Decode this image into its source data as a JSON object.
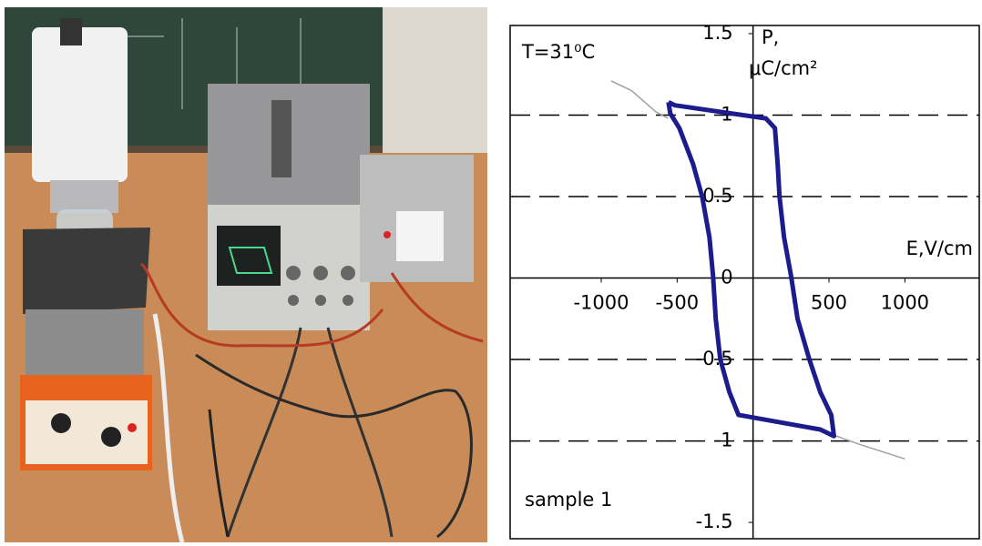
{
  "chart_data": {
    "type": "line",
    "title": "T=31⁰C",
    "ylabel_lines": [
      "P,",
      "μC/cm²"
    ],
    "xlabel": "E,V/cm",
    "annotation": "sample 1",
    "xlim": [
      -1600,
      1490
    ],
    "ylim": [
      -1.6,
      1.55
    ],
    "xticks": [
      -1000,
      -500,
      500,
      1000
    ],
    "yticks": [
      1.5,
      1,
      0.5,
      0,
      -0.5,
      -1,
      -1.5
    ],
    "ygrid": [
      1,
      0.5,
      -0.5,
      -1
    ],
    "grid": "dashed",
    "series": [
      {
        "color": "#a0a0a0",
        "x": [
          -934,
          -800,
          -640,
          -560,
          null,
          520,
          700,
          1000
        ],
        "values": [
          1.21,
          1.15,
          1.02,
          0.98,
          null,
          -0.96,
          -1.02,
          -1.11
        ]
      },
      {
        "color": "#1c1c8e",
        "x": [
          -557,
          -545,
          -485,
          -395,
          -335,
          -287,
          -263,
          -246,
          -216,
          -156,
          -96,
          443,
          533,
          515,
          443,
          371,
          293,
          251,
          204,
          174,
          162,
          144,
          84,
          -515,
          -557
        ],
        "values": [
          1.08,
          1.01,
          0.92,
          0.7,
          0.5,
          0.25,
          0.01,
          -0.25,
          -0.5,
          -0.7,
          -0.84,
          -0.93,
          -0.97,
          -0.84,
          -0.7,
          -0.5,
          -0.25,
          0.01,
          0.25,
          0.5,
          0.7,
          0.92,
          0.98,
          1.06,
          1.08
        ]
      }
    ]
  }
}
